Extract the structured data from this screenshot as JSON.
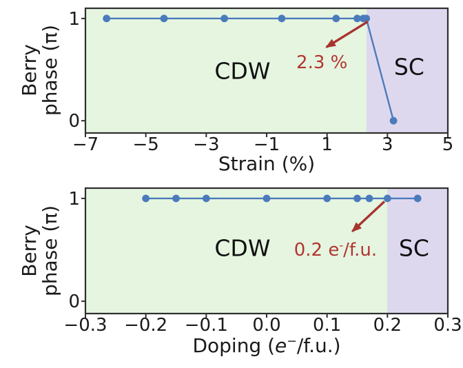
{
  "figure": {
    "ylabel_line1": "Berry",
    "ylabel_line2": "phase (π)"
  },
  "chart_data": [
    {
      "type": "line",
      "panel": "strain",
      "xlabel": "Strain (%)",
      "ylabel": "Berry phase (π)",
      "xlim": [
        -7,
        5
      ],
      "ylim": [
        -0.12,
        1.1
      ],
      "grid": false,
      "xticks": {
        "values": [
          -7,
          -5,
          -3,
          -1,
          1,
          3,
          5
        ],
        "labels": [
          "−7",
          "−5",
          "−3",
          "−1",
          "1",
          "3",
          "5"
        ]
      },
      "yticks": {
        "values": [
          1,
          0
        ],
        "labels": [
          "1",
          "0"
        ]
      },
      "series": [
        {
          "name": "Berry phase",
          "x": [
            -6.3,
            -4.4,
            -2.4,
            -0.5,
            1.3,
            2.0,
            2.2,
            2.3,
            3.2
          ],
          "y": [
            1,
            1,
            1,
            1,
            1,
            1,
            1,
            1,
            0
          ],
          "color": "#4b7bbb"
        }
      ],
      "regions": [
        {
          "label": "CDW",
          "from": -7,
          "to": 2.3,
          "color": "#e5f5e0",
          "label_at": [
            -1.8,
            0.49
          ]
        },
        {
          "label": "SC",
          "from": 2.3,
          "to": 5,
          "color": "#ded8ef",
          "label_at": [
            3.72,
            0.53
          ]
        }
      ],
      "annotation": {
        "text": "2.3 %",
        "text_color": "#b23530",
        "arrow_color": "#a83430",
        "arrow_from": [
          2.35,
          0.97
        ],
        "arrow_to": [
          0.98,
          0.72
        ],
        "label_at": [
          0.83,
          0.57
        ]
      }
    },
    {
      "type": "line",
      "panel": "doping",
      "xlabel": "Doping (e⁻/f.u.)",
      "xlabel_parts": {
        "pre": "Doping (",
        "var": "e",
        "sup": "−",
        "post": "/f.u.)"
      },
      "ylabel": "Berry phase (π)",
      "xlim": [
        -0.3,
        0.3
      ],
      "ylim": [
        -0.12,
        1.1
      ],
      "grid": false,
      "xticks": {
        "values": [
          -0.3,
          -0.2,
          -0.1,
          0.0,
          0.1,
          0.2,
          0.3
        ],
        "labels": [
          "−0.3",
          "−0.2",
          "−0.1",
          "0.0",
          "0.1",
          "0.2",
          "0.3"
        ]
      },
      "yticks": {
        "values": [
          1,
          0
        ],
        "labels": [
          "1",
          "0"
        ]
      },
      "series": [
        {
          "name": "Berry phase",
          "x": [
            -0.2,
            -0.15,
            -0.1,
            0.0,
            0.1,
            0.15,
            0.17,
            0.2,
            0.25
          ],
          "y": [
            1,
            1,
            1,
            1,
            1,
            1,
            1,
            1,
            1
          ],
          "color": "#4b7bbb"
        }
      ],
      "regions": [
        {
          "label": "CDW",
          "from": -0.3,
          "to": 0.2,
          "color": "#e5f5e0",
          "label_at": [
            -0.04,
            0.52
          ]
        },
        {
          "label": "SC",
          "from": 0.2,
          "to": 0.3,
          "color": "#ded8ef",
          "label_at": [
            0.244,
            0.52
          ]
        }
      ],
      "annotation": {
        "text": "0.2 e⁻/f.u.",
        "parts": {
          "pre": "0.2 e",
          "sup": "-",
          "post": "/f.u."
        },
        "text_color": "#b23530",
        "arrow_color": "#a83430",
        "arrow_from": [
          0.195,
          0.97
        ],
        "arrow_to": [
          0.142,
          0.68
        ],
        "label_at": [
          0.114,
          0.5
        ]
      }
    }
  ]
}
